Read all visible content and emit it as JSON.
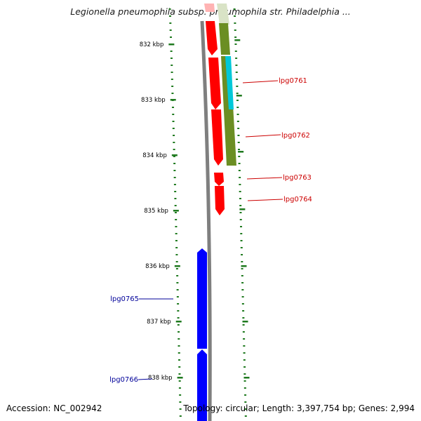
{
  "title": "Legionella pneumophila subsp. pneumophila str. Philadelphia ...",
  "footer": {
    "accession": "Accession: NC_002942",
    "topology": "Topology: circular; Length: 3,397,754 bp; Genes: 2,994"
  },
  "colors": {
    "backbone": "#7f7f7f",
    "ticks": "#1f7a1f",
    "forward_cds": "#ff0000",
    "forward_cds_faded": "#ffb3b3",
    "reverse_cds": "#0000ff",
    "feature_olive": "#6b8e23",
    "feature_olive_faded": "#d9e3c6",
    "feature_cyan": "#00c8d8",
    "forward_label": "#cc0000",
    "reverse_label": "#000099"
  },
  "ruler": {
    "labels": [
      "832 kbp",
      "833 kbp",
      "834 kbp",
      "835 kbp",
      "836 kbp",
      "837 kbp",
      "838 kbp"
    ]
  },
  "genes": {
    "forward": [
      {
        "label": ""
      },
      {
        "label": ""
      },
      {
        "label": "lpg0761"
      },
      {
        "label": "lpg0762"
      },
      {
        "label": "lpg0763"
      },
      {
        "label": "lpg0764"
      }
    ],
    "reverse": [
      {
        "label": "lpg0765"
      },
      {
        "label": "lpg0766"
      }
    ]
  }
}
